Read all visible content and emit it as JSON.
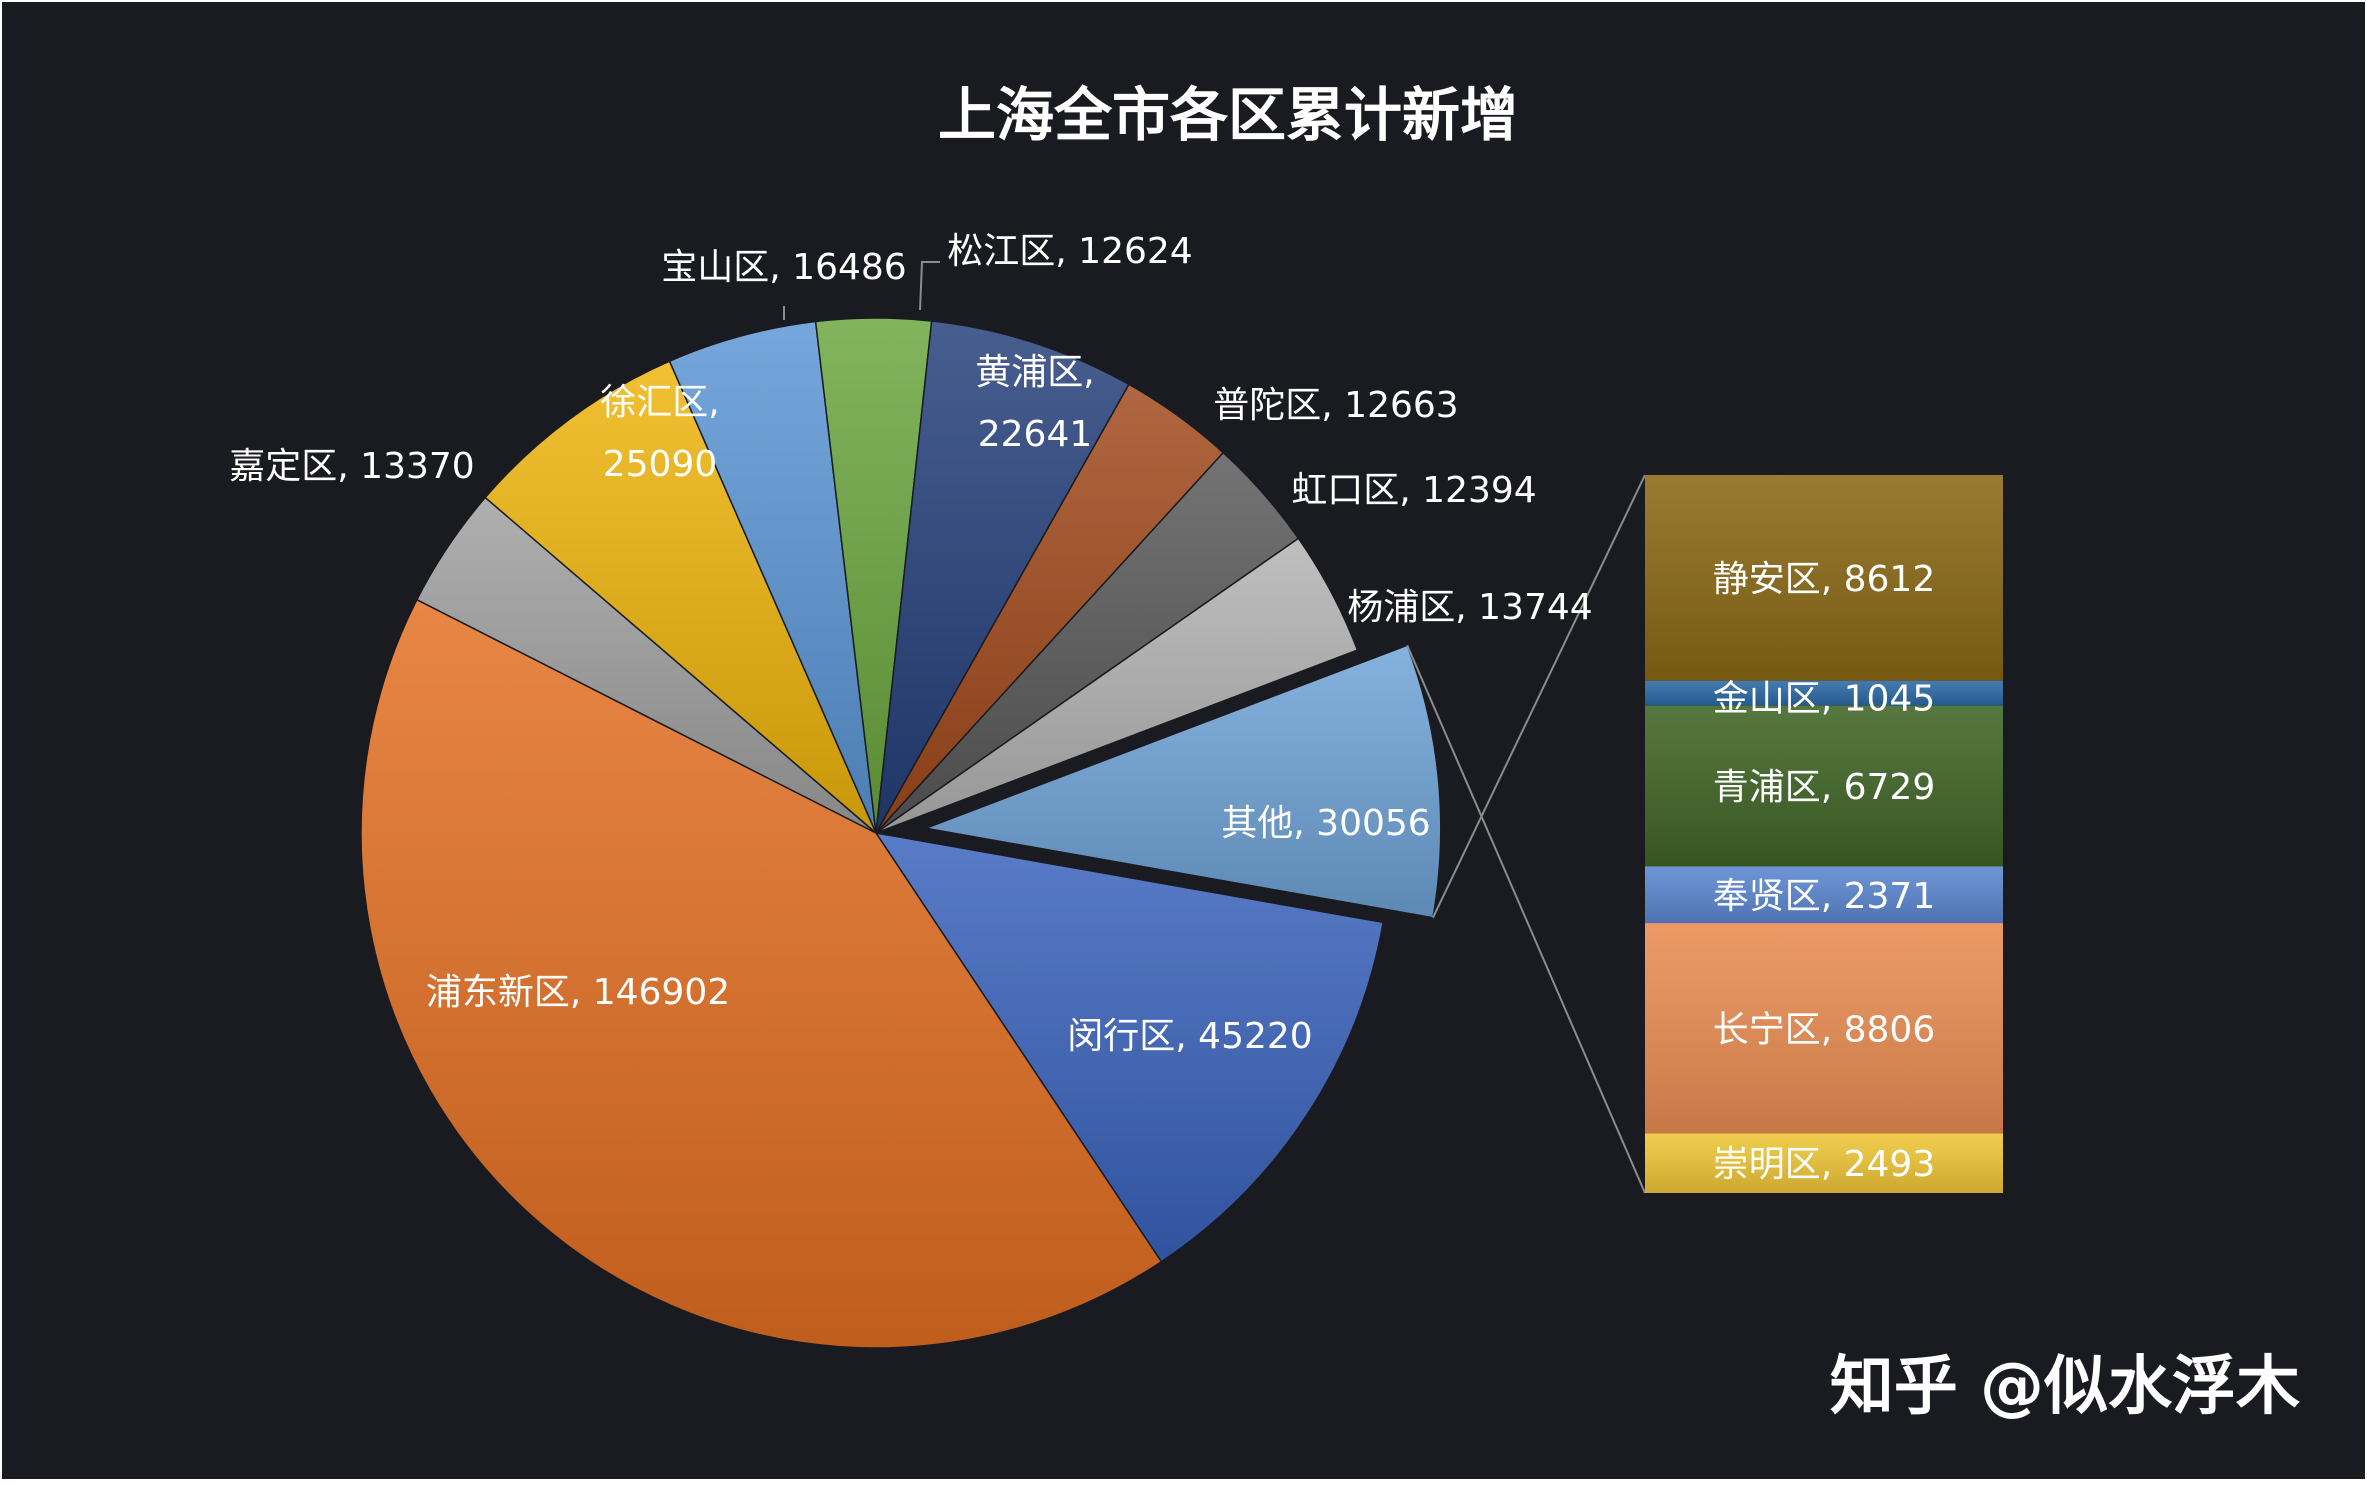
{
  "chart_data": {
    "type": "pie",
    "title": "上海全市各区累计新增",
    "slices": [
      {
        "name": "闵行区",
        "value": 45220,
        "color": "#3a63bd",
        "label": "闵行区, 45220"
      },
      {
        "name": "浦东新区",
        "value": 146902,
        "color": "#e46f22",
        "label": "浦东新区, 146902"
      },
      {
        "name": "嘉定区",
        "value": 13370,
        "color": "#a0a0a0",
        "label": "嘉定区, 13370"
      },
      {
        "name": "徐汇区",
        "value": 25090,
        "color": "#efb50c",
        "label": "徐汇区, 25090"
      },
      {
        "name": "宝山区",
        "value": 16486,
        "color": "#5b96d5",
        "label": "宝山区, 16486"
      },
      {
        "name": "松江区",
        "value": 12624,
        "color": "#6aa63e",
        "label": "松江区, 12624"
      },
      {
        "name": "黄浦区",
        "value": 22641,
        "color": "#243f7a",
        "label": "黄浦区, 22641"
      },
      {
        "name": "普陀区",
        "value": 12663,
        "color": "#a14a1c",
        "label": "普陀区, 12663"
      },
      {
        "name": "虹口区",
        "value": 12394,
        "color": "#595959",
        "label": "虹口区, 12394"
      },
      {
        "name": "杨浦区",
        "value": 13744,
        "color": "#b3b3b3",
        "label": "杨浦区, 13744"
      },
      {
        "name": "其他",
        "value": 30056,
        "color": "#6fa3d8",
        "label": "其他, 30056"
      }
    ],
    "breakdown": {
      "of": "其他",
      "segments": [
        {
          "name": "静安区",
          "value": 8612,
          "color": "#8a6814",
          "label": "静安区, 8612"
        },
        {
          "name": "金山区",
          "value": 1045,
          "color": "#2a68a4",
          "label": "金山区, 1045"
        },
        {
          "name": "青浦区",
          "value": 6729,
          "color": "#3f6426",
          "label": "青浦区, 6729"
        },
        {
          "name": "奉贤区",
          "value": 2371,
          "color": "#5a86d0",
          "label": "奉贤区, 2371"
        },
        {
          "name": "长宁区",
          "value": 8806,
          "color": "#e98d52",
          "label": "长宁区, 8806"
        },
        {
          "name": "崇明区",
          "value": 2493,
          "color": "#efc636",
          "label": "崇明区, 2493"
        }
      ]
    }
  },
  "watermark": "知乎 @似水浮木",
  "colors": {
    "background": "#1a1b20",
    "leader_line": "#8c8c8c"
  }
}
